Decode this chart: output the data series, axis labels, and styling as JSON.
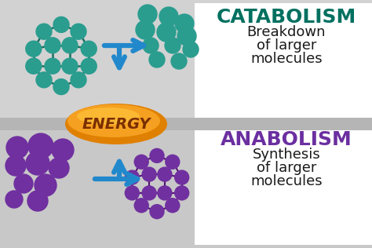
{
  "bg_top_color": "#d0d0d0",
  "bg_bot_color": "#c8c8c8",
  "white_panel_color": "#ffffff",
  "separator_color": "#b0b0b0",
  "catabolism_color": "#007060",
  "anabolism_color": "#6b2fa0",
  "arrow_color": "#2288cc",
  "energy_fill_outer": "#e08000",
  "energy_fill_inner": "#f5a020",
  "energy_highlight": "#ffcc44",
  "energy_text_color": "#7a2e00",
  "mol_teal": "#2a9d8f",
  "mol_teal_dark": "#1a7060",
  "mol_purple": "#7030a0",
  "mol_purple_dark": "#501070",
  "catabolism_title": "CATABOLISM",
  "catabolism_sub1": "Breakdown",
  "catabolism_sub2": "of larger",
  "catabolism_sub3": "molecules",
  "anabolism_title": "ANABOLISM",
  "anabolism_sub1": "Synthesis",
  "anabolism_sub2": "of larger",
  "anabolism_sub3": "molecules",
  "energy_label": "ENERGY",
  "figsize": [
    4.74,
    3.16
  ],
  "dpi": 100
}
